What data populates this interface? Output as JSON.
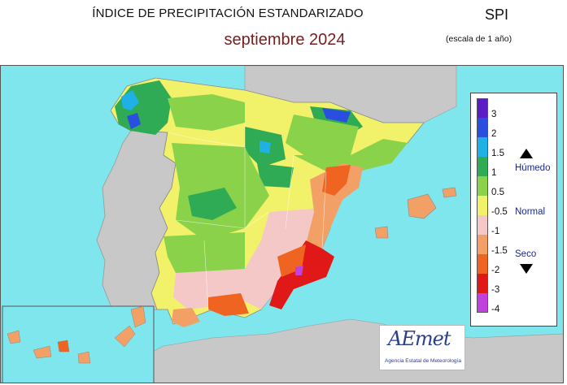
{
  "header": {
    "title": "ÍNDICE DE PRECIPITACIÓN ESTANDARIZADO",
    "subtitle": "septiembre  2024",
    "index_code": "SPI",
    "scale_note": "(escala de 1 año)"
  },
  "legend": {
    "ticks": [
      "3",
      "2",
      "1.5",
      "1",
      "0.5",
      "-0.5",
      "-1",
      "-1.5",
      "-2",
      "-3",
      "-4"
    ],
    "colors": [
      "#5a1cc4",
      "#2a4ee0",
      "#1fb0e6",
      "#2fab55",
      "#8ad24a",
      "#f2f26a",
      "#f5c8c8",
      "#f2a066",
      "#ee6420",
      "#e01818",
      "#c040e0"
    ],
    "humid_label": "Húmedo",
    "normal_label": "Normal",
    "dry_label": "Seco"
  },
  "map": {
    "sea_color": "#7ee6ec",
    "neighbor_land_color": "#c8c8c8",
    "regions_note": ""
  },
  "logo": {
    "name": "AEmet",
    "tagline": "Agencia Estatal de Meteorología"
  }
}
